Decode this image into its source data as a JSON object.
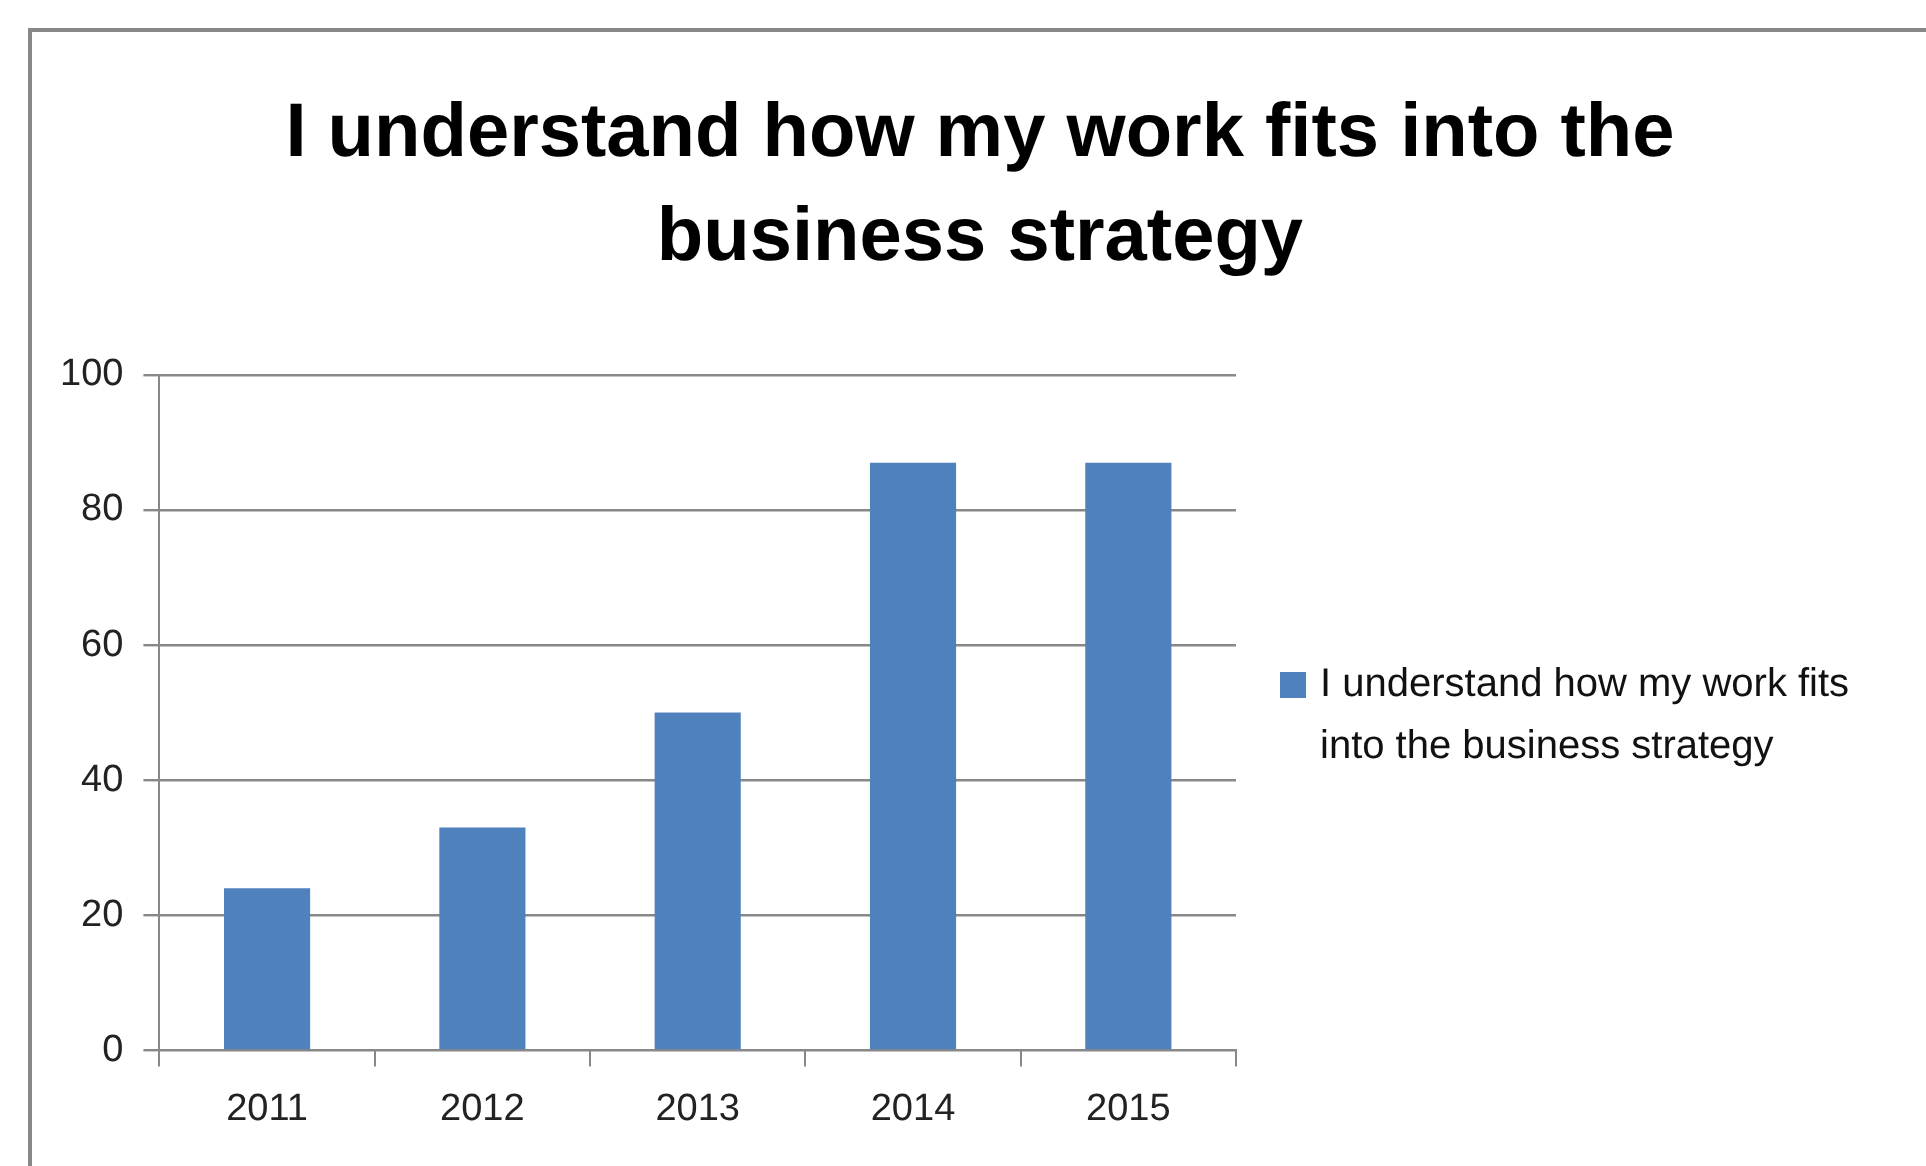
{
  "chart_data": {
    "type": "bar",
    "title": "I understand how my work fits into the business strategy",
    "categories": [
      "2011",
      "2012",
      "2013",
      "2014",
      "2015"
    ],
    "series": [
      {
        "name": "I understand how my work fits into the business strategy",
        "color": "#4f81bd",
        "values": [
          24,
          33,
          50,
          87,
          87
        ]
      }
    ],
    "ylim": [
      0,
      100
    ],
    "yticks": [
      0,
      20,
      40,
      60,
      80,
      100
    ],
    "grid": "y",
    "legend": "right"
  }
}
